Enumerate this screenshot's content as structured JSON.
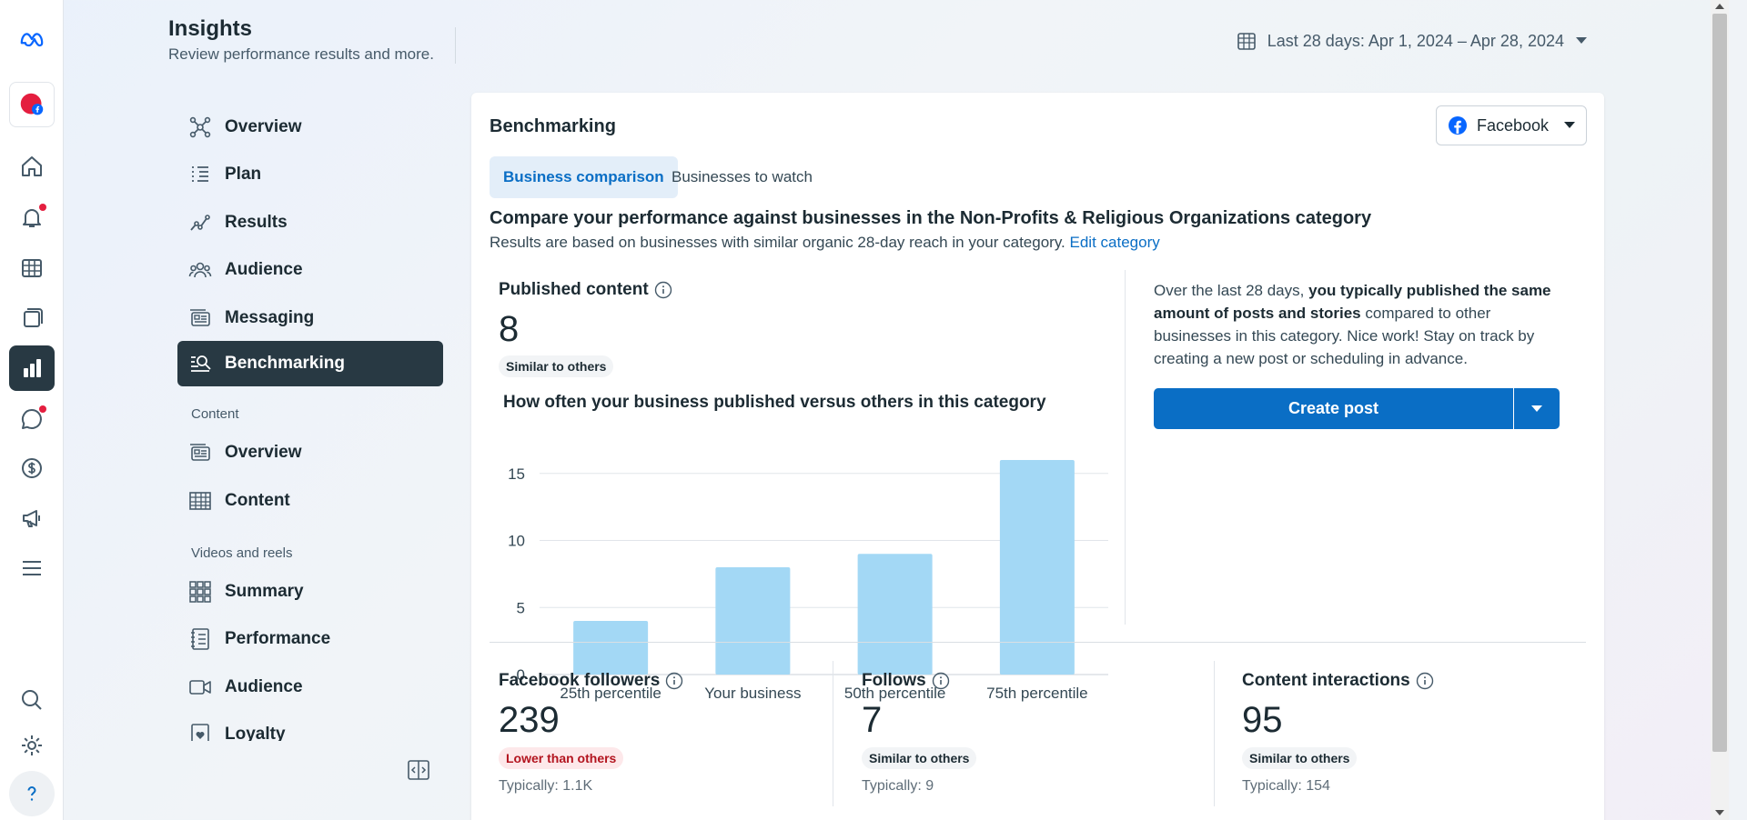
{
  "header": {
    "title": "Insights",
    "subtitle": "Review performance results and more.",
    "date_range": "Last 28 days: Apr 1, 2024 – Apr 28, 2024"
  },
  "rail_icons": [
    "meta-logo-icon",
    "profile-avatar",
    "home-icon",
    "notifications-icon",
    "table-icon",
    "pages-icon",
    "insights-icon",
    "chat-icon",
    "monetization-icon",
    "ads-icon",
    "menu-icon",
    "search-icon",
    "settings-icon",
    "help-icon"
  ],
  "nav": {
    "items": [
      {
        "label": "Overview",
        "icon": "overview-icon"
      },
      {
        "label": "Plan",
        "icon": "plan-icon"
      },
      {
        "label": "Results",
        "icon": "results-icon"
      },
      {
        "label": "Audience",
        "icon": "audience-icon"
      },
      {
        "label": "Messaging",
        "icon": "messaging-icon"
      },
      {
        "label": "Benchmarking",
        "icon": "benchmarking-icon"
      }
    ],
    "content_section": "Content",
    "content_items": [
      {
        "label": "Overview",
        "icon": "content-overview-icon"
      },
      {
        "label": "Content",
        "icon": "content-table-icon"
      }
    ],
    "videos_section": "Videos and reels",
    "videos_items": [
      {
        "label": "Summary",
        "icon": "summary-icon"
      },
      {
        "label": "Performance",
        "icon": "performance-icon"
      },
      {
        "label": "Audience",
        "icon": "video-audience-icon"
      },
      {
        "label": "Loyalty",
        "icon": "loyalty-icon"
      }
    ]
  },
  "card": {
    "title": "Benchmarking",
    "platform": "Facebook",
    "tabs": [
      "Business comparison",
      "Businesses to watch"
    ],
    "compare_heading": "Compare your performance against businesses in the Non-Profits & Religious Organizations category",
    "compare_sub": "Results are based on businesses with similar organic 28-day reach in your category.",
    "edit_category": "Edit category",
    "published": {
      "label": "Published content",
      "value": "8",
      "badge": "Similar to others"
    },
    "chart_title": "How often your business published versus others in this category",
    "insight_prefix": "Over the last 28 days,",
    "insight_bold": "you typically published the same amount of posts and stories",
    "insight_suffix": "compared to other businesses in this category. Nice work! Stay on track by creating a new post or scheduling in advance.",
    "create_post": "Create post",
    "metrics": [
      {
        "label": "Facebook followers",
        "value": "239",
        "badge": "Lower than others",
        "typical": "Typically: 1.1K"
      },
      {
        "label": "Follows",
        "value": "7",
        "badge": "Similar to others",
        "typical": "Typically: 9"
      },
      {
        "label": "Content interactions",
        "value": "95",
        "badge": "Similar to others",
        "typical": "Typically: 154"
      }
    ]
  },
  "chart_data": {
    "type": "bar",
    "categories": [
      "25th percentile",
      "Your business",
      "50th percentile",
      "75th percentile"
    ],
    "values": [
      4,
      8,
      9,
      16
    ],
    "yticks": [
      0,
      5,
      10,
      15
    ],
    "ylim": [
      0,
      16
    ],
    "bar_color": "#a3d8f5",
    "grid": true
  },
  "colors": {
    "accent": "#0a6ec5",
    "nav_active": "#283943",
    "notification": "#e41e3f"
  }
}
